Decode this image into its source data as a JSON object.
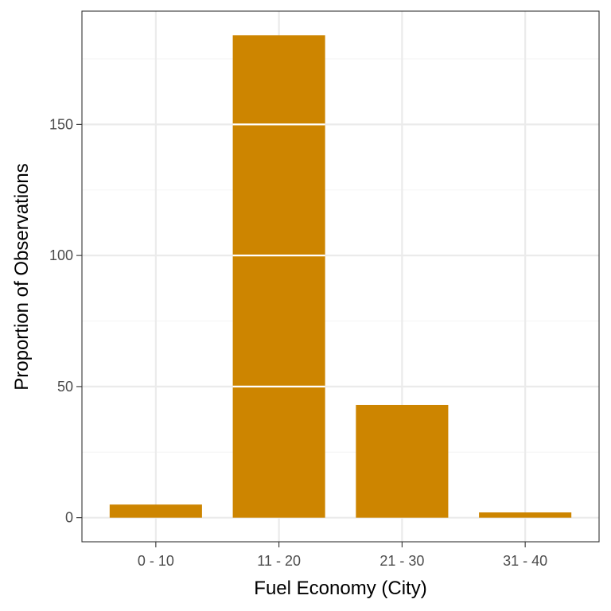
{
  "chart_data": {
    "type": "bar",
    "categories": [
      "0 - 10",
      "11 - 20",
      "21 - 30",
      "31 - 40"
    ],
    "values": [
      5,
      184,
      43,
      2
    ],
    "xlabel": "Fuel Economy (City)",
    "ylabel": "Proportion of Observations",
    "ylim": [
      -9.2,
      193.2
    ],
    "yticks": [
      0,
      50,
      100,
      150
    ],
    "ytick_labels": [
      "0",
      "50",
      "100",
      "150"
    ],
    "grid": true,
    "legend": "none"
  },
  "colors": {
    "bar": "#CD8500",
    "panel_background": "#FFFFFF",
    "grid_major": "#EBEBEB",
    "grid_minor": "#F5F5F5",
    "panel_border": "#333333"
  }
}
